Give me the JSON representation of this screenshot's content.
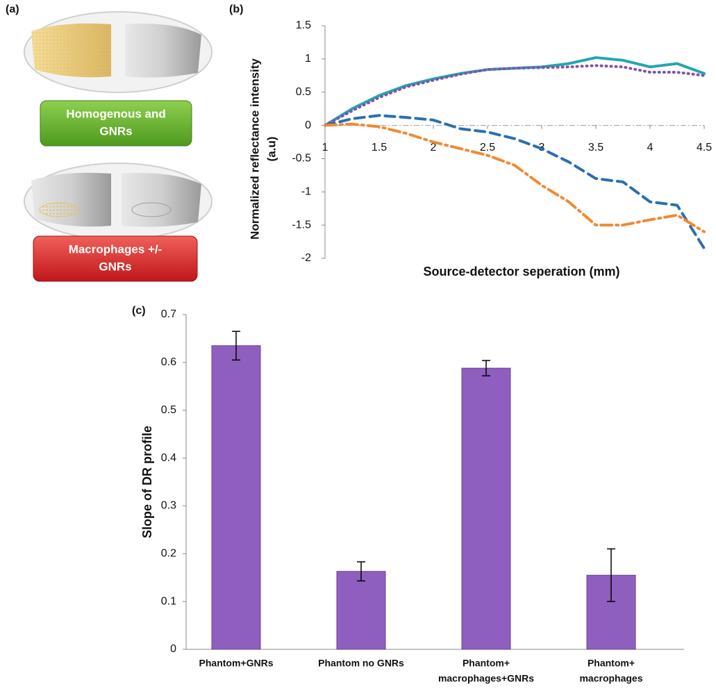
{
  "panel_a": {
    "label": "(a)",
    "buttons": [
      [
        "Homogenous and",
        "GNRs"
      ],
      [
        "Macrophages +/-",
        "GNRs"
      ]
    ]
  },
  "chart_data": [
    {
      "type": "line",
      "panel_label": "(b)",
      "x_label": "Source-detector seperation (mm)",
      "y_label": [
        "Normalized reflectance intensity",
        "(a.u)"
      ],
      "x": [
        1,
        1.25,
        1.5,
        1.75,
        2,
        2.25,
        2.5,
        2.75,
        3,
        3.25,
        3.5,
        3.75,
        4,
        4.25,
        4.5
      ],
      "series": [
        {
          "color": "#23a6b0",
          "style": "solid",
          "values": [
            0,
            0.25,
            0.45,
            0.6,
            0.7,
            0.78,
            0.84,
            0.86,
            0.88,
            0.93,
            1.02,
            0.98,
            0.88,
            0.93,
            0.78
          ]
        },
        {
          "color": "#8352a6",
          "style": "dotted",
          "values": [
            0,
            0.22,
            0.42,
            0.58,
            0.68,
            0.77,
            0.84,
            0.86,
            0.87,
            0.88,
            0.9,
            0.88,
            0.8,
            0.8,
            0.75
          ]
        },
        {
          "color": "#2a6fb0",
          "style": "dashed",
          "values": [
            0,
            0.1,
            0.15,
            0.12,
            0.08,
            -0.05,
            -0.1,
            -0.2,
            -0.35,
            -0.55,
            -0.8,
            -0.85,
            -1.15,
            -1.2,
            -1.85
          ]
        },
        {
          "color": "#f08a33",
          "style": "dashdot",
          "values": [
            0,
            0.02,
            -0.02,
            -0.12,
            -0.25,
            -0.35,
            -0.45,
            -0.6,
            -0.9,
            -1.15,
            -1.5,
            -1.5,
            -1.42,
            -1.35,
            -1.6
          ]
        }
      ],
      "xlim": [
        1,
        4.5
      ],
      "xticks": [
        1,
        1.5,
        2,
        2.5,
        3,
        3.5,
        4,
        4.5
      ],
      "ylim": [
        -2,
        1.5
      ],
      "yticks": [
        -2,
        -1.5,
        -1,
        -0.5,
        0,
        0.5,
        1,
        1.5
      ]
    },
    {
      "type": "bar",
      "panel_label": "(c)",
      "y_label": "Slope of DR profile",
      "categories": [
        [
          "Phantom+GNRs"
        ],
        [
          "Phantom no GNRs"
        ],
        [
          "Phantom+",
          "macrophages+GNRs"
        ],
        [
          "Phantom+",
          "macrophages"
        ]
      ],
      "values": [
        0.635,
        0.163,
        0.588,
        0.155
      ],
      "errors": [
        0.03,
        0.02,
        0.016,
        0.055
      ],
      "color": "#8e5fbf",
      "ylim": [
        0,
        0.7
      ],
      "yticks": [
        0,
        0.1,
        0.2,
        0.3,
        0.4,
        0.5,
        0.6,
        0.7
      ]
    }
  ]
}
